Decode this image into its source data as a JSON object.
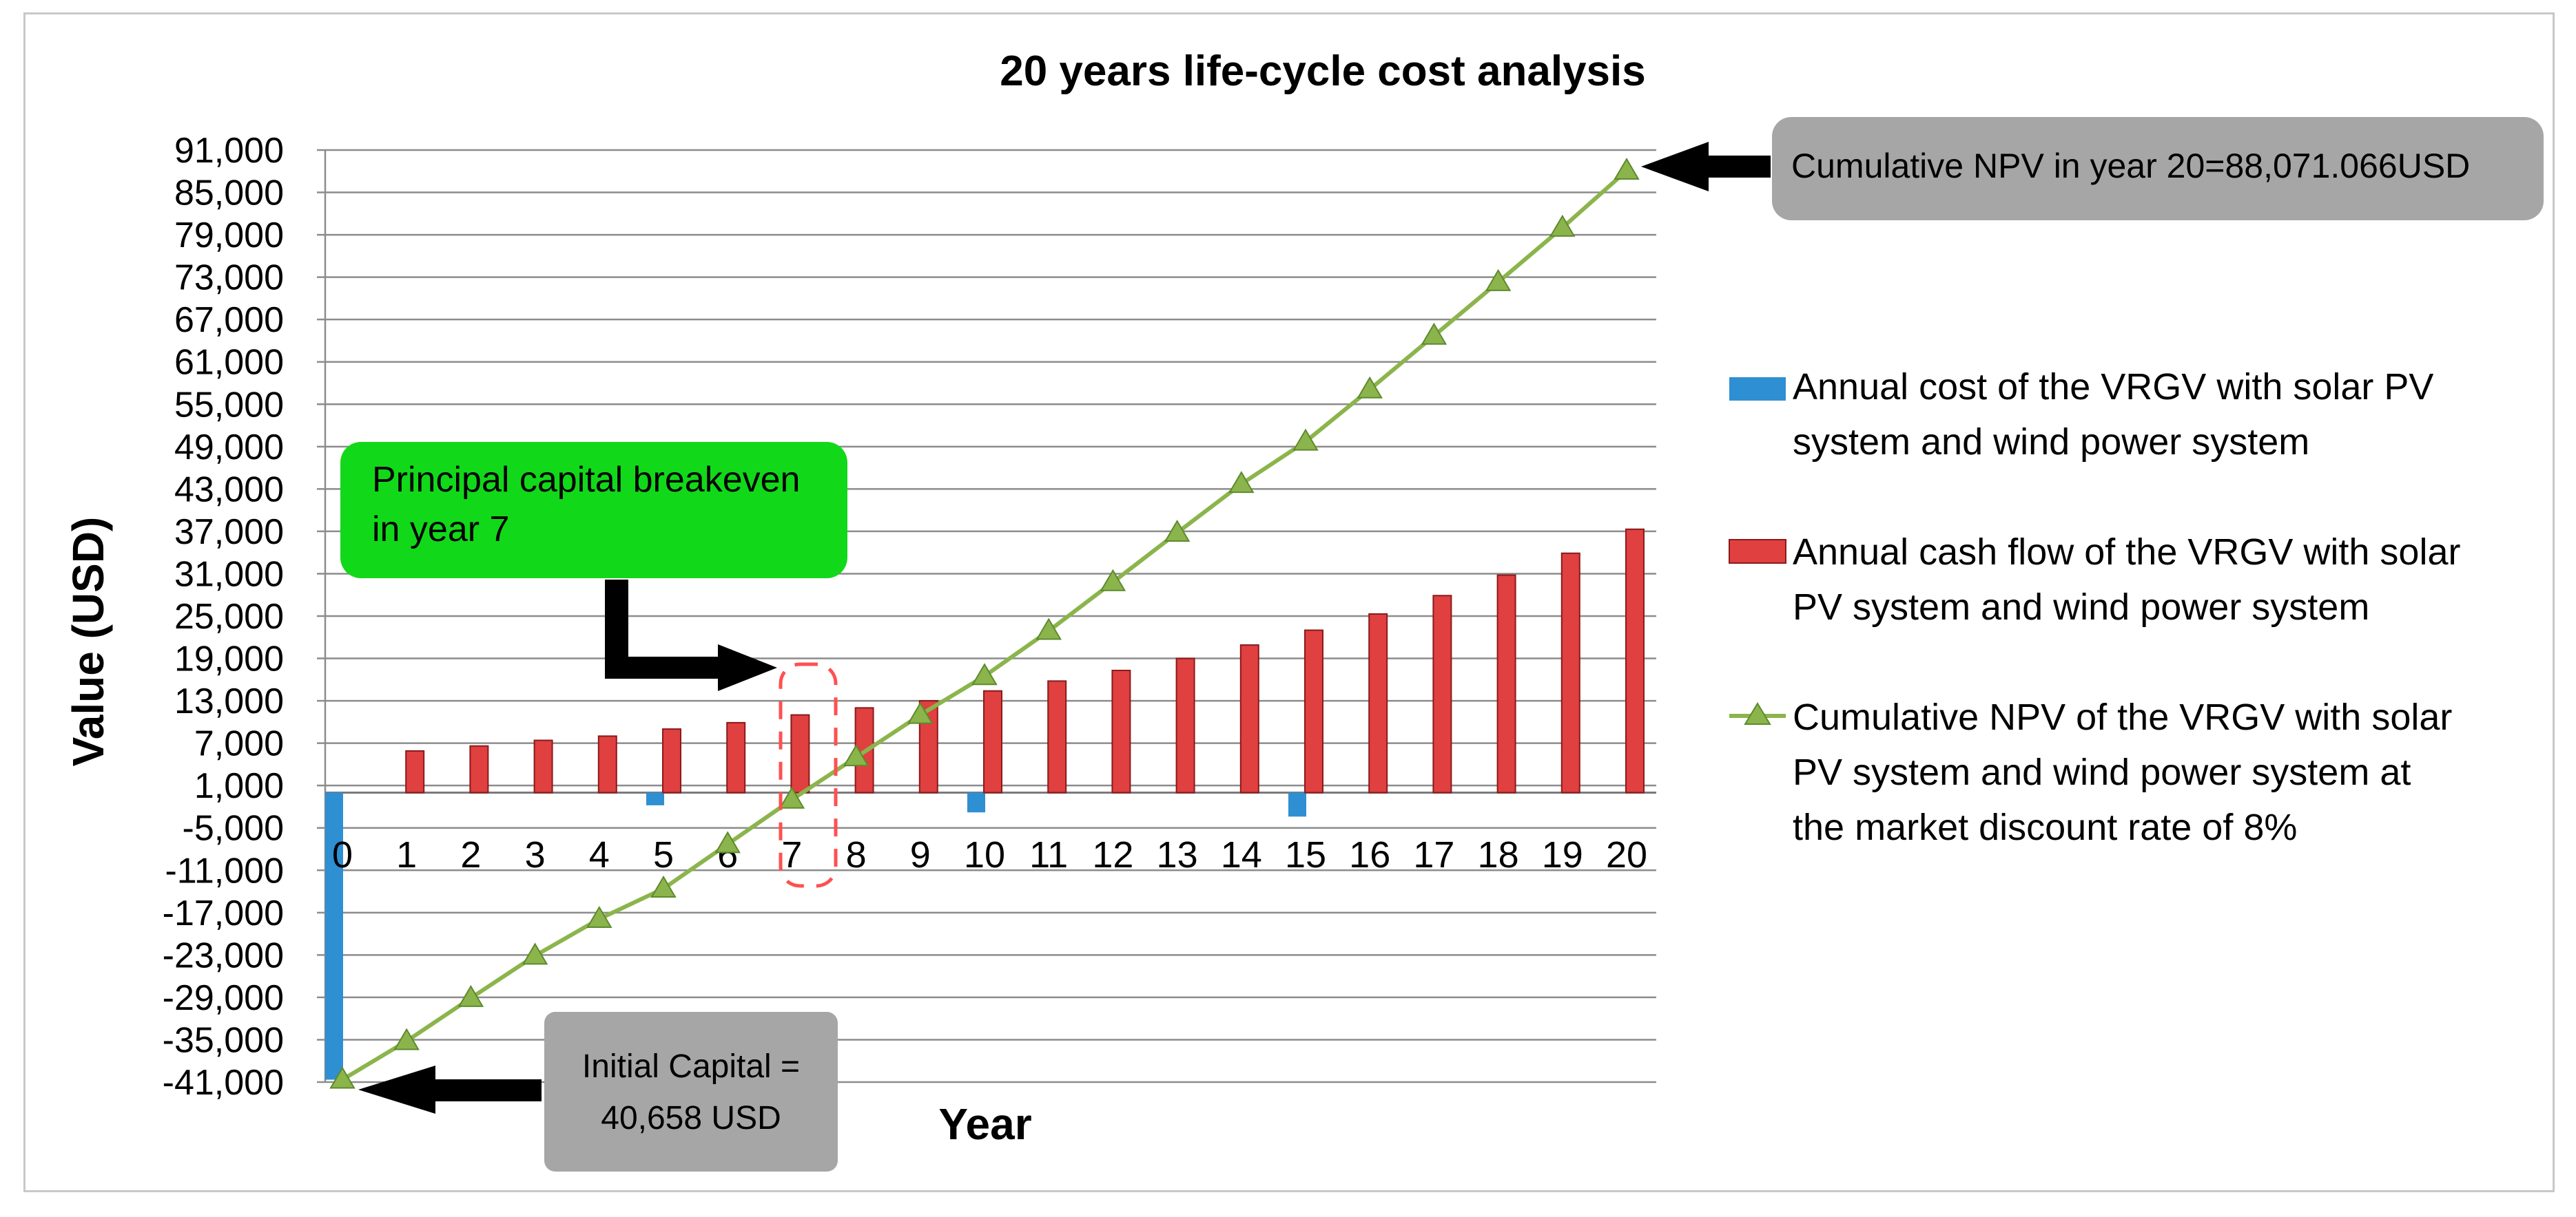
{
  "chart_data": {
    "type": "bar",
    "title": "20 years life-cycle cost analysis",
    "xlabel": "Year",
    "ylabel": "Value (USD)",
    "ylim": [
      -41000,
      91000
    ],
    "grid": true,
    "categories": [
      "0",
      "1",
      "2",
      "3",
      "4",
      "5",
      "6",
      "7",
      "8",
      "9",
      "10",
      "11",
      "12",
      "13",
      "14",
      "15",
      "16",
      "17",
      "18",
      "19",
      "20"
    ],
    "y_ticks": [
      "91,000",
      "85,000",
      "79,000",
      "73,000",
      "67,000",
      "61,000",
      "55,000",
      "49,000",
      "43,000",
      "37,000",
      "31,000",
      "25,000",
      "19,000",
      "13,000",
      "7,000",
      "1,000",
      "-5,000",
      "-11,000",
      "-17,000",
      "-23,000",
      "-29,000",
      "-35,000",
      "-41,000"
    ],
    "y_tick_values": [
      91000,
      85000,
      79000,
      73000,
      67000,
      61000,
      55000,
      49000,
      43000,
      37000,
      31000,
      25000,
      19000,
      13000,
      7000,
      1000,
      -5000,
      -11000,
      -17000,
      -23000,
      -29000,
      -35000,
      -41000
    ],
    "series": [
      {
        "name": "Annual cost of the VRGV with solar PV system and wind power system",
        "legend_lines": [
          "Annual cost of the VRGV with solar PV",
          "system and wind power system"
        ],
        "type": "bar",
        "color": "#2e8fd3",
        "values": [
          -40658,
          0,
          0,
          0,
          0,
          -1800,
          0,
          0,
          0,
          0,
          -2800,
          0,
          0,
          0,
          0,
          -3400,
          0,
          0,
          0,
          0,
          0
        ]
      },
      {
        "name": "Annual cash flow of the VRGV with solar PV system and wind power system",
        "legend_lines": [
          "Annual cash flow of the VRGV with solar",
          "PV system and wind power system"
        ],
        "type": "bar",
        "color": "#e04040",
        "values": [
          0,
          5900,
          6600,
          7400,
          8000,
          9000,
          9900,
          11000,
          12000,
          13000,
          14400,
          15800,
          17300,
          19000,
          20900,
          23000,
          25300,
          27900,
          30800,
          33900,
          37300
        ]
      },
      {
        "name": "Cumulative NPV of the VRGV with solar PV system and wind power system at the market discount rate of 8%",
        "legend_lines": [
          "Cumulative NPV of the VRGV with solar",
          "PV system and wind power system at",
          "the market discount rate of 8%"
        ],
        "type": "line",
        "color": "#8bb54c",
        "marker": "triangle",
        "values": [
          -40658,
          -35200,
          -29100,
          -23100,
          -17900,
          -13600,
          -7300,
          -1000,
          5000,
          11000,
          16500,
          22900,
          29800,
          36800,
          43700,
          49700,
          57100,
          64700,
          72300,
          80000,
          88071
        ]
      }
    ]
  },
  "annotations": {
    "breakeven": [
      "Principal capital breakeven",
      "in year 7"
    ],
    "initial_capital": [
      "Initial Capital =",
      "40,658 USD"
    ],
    "final_npv": "Cumulative NPV in year 20=88,071.066USD"
  },
  "colors": {
    "breakeven_box": "#12d81a",
    "note_box": "#a6a6a6",
    "grid": "#8c8c8c",
    "arrow": "#000000",
    "dashed_highlight": "#ff5050"
  }
}
